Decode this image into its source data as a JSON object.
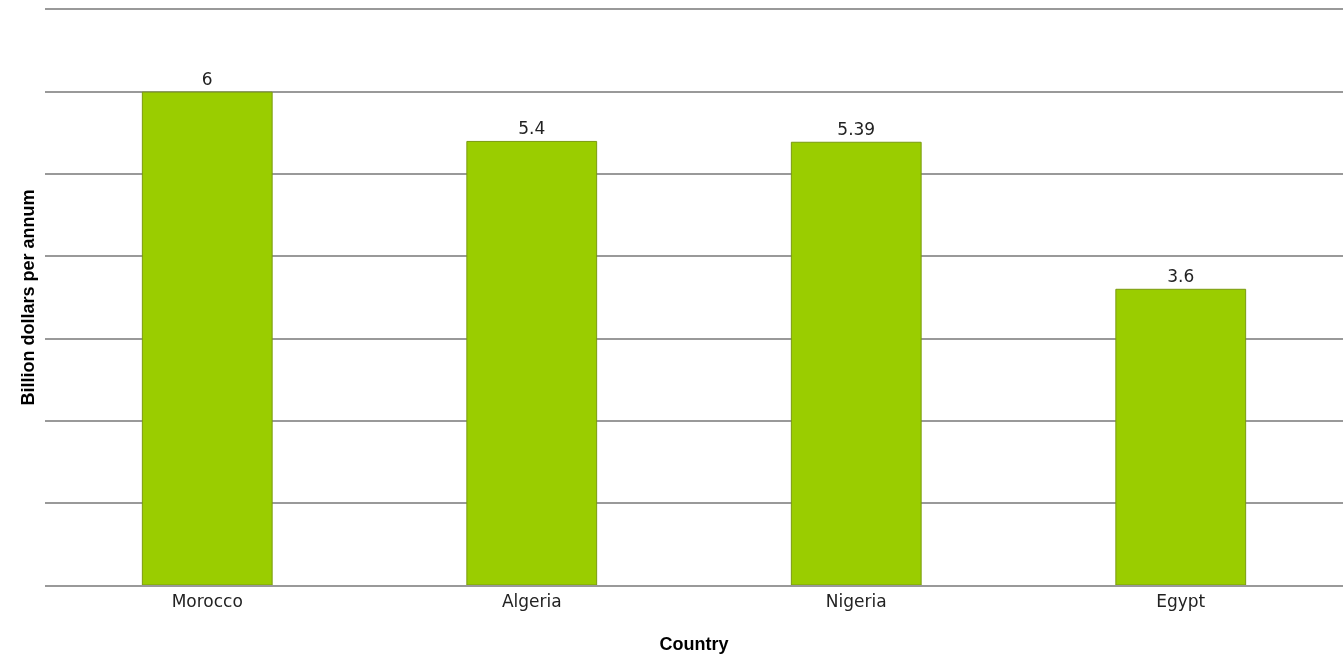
{
  "chart_data": {
    "type": "bar",
    "xlabel": "Country",
    "ylabel": "Billion dollars per annum",
    "categories": [
      "Morocco",
      "Algeria",
      "Nigeria",
      "Egypt"
    ],
    "values": [
      6,
      5.4,
      5.39,
      3.6
    ],
    "color": "#9acd00",
    "ylim": [
      0,
      7
    ],
    "yticks": [
      {
        "value": 0,
        "label": null
      },
      {
        "value": 1,
        "label": null
      },
      {
        "value": 2,
        "label": null
      },
      {
        "value": 3,
        "label": null
      },
      {
        "value": 4,
        "label": null
      },
      {
        "value": 5,
        "label": null
      },
      {
        "value": 6,
        "label": null
      },
      {
        "value": 7,
        "label": null
      }
    ],
    "grid": "y",
    "data_labels": true,
    "tick_labels": "x"
  }
}
